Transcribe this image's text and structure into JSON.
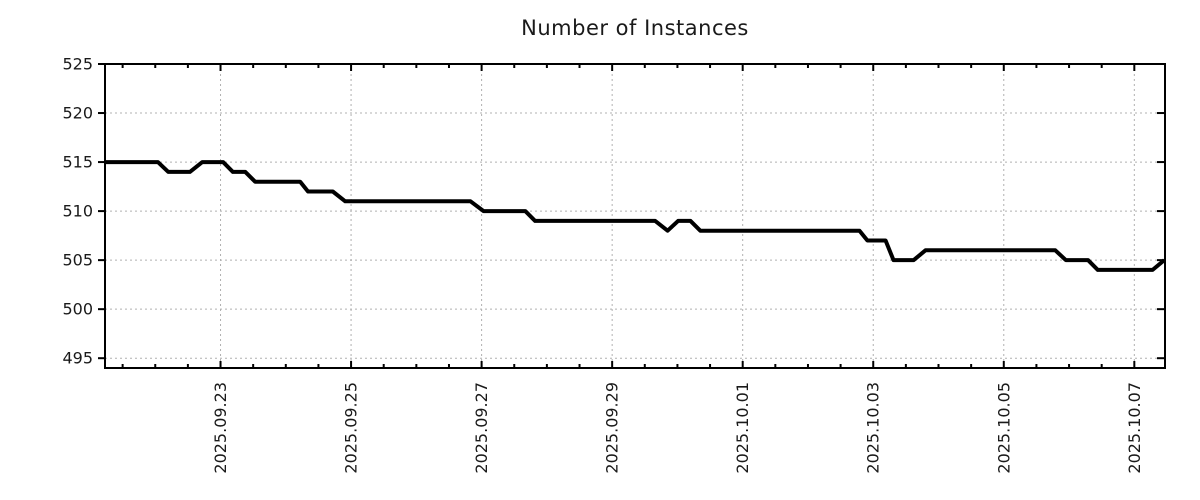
{
  "chart_data": {
    "type": "line",
    "title": "Number of Instances",
    "xlabel": "",
    "ylabel": "",
    "x_unit": "days since 2025-09-20 00:00",
    "xlim": [
      1.23,
      17.47
    ],
    "ylim": [
      494,
      525
    ],
    "grid": "dashed",
    "legend": "none",
    "y_ticks": [
      495,
      500,
      505,
      510,
      515,
      520,
      525
    ],
    "x_ticks": [
      {
        "t": 3,
        "label": "2025.09.23"
      },
      {
        "t": 5,
        "label": "2025.09.25"
      },
      {
        "t": 7,
        "label": "2025.09.27"
      },
      {
        "t": 9,
        "label": "2025.09.29"
      },
      {
        "t": 11,
        "label": "2025.10.01"
      },
      {
        "t": 13,
        "label": "2025.10.03"
      },
      {
        "t": 15,
        "label": "2025.10.05"
      },
      {
        "t": 17,
        "label": "2025.10.07"
      }
    ],
    "x_minor_step": 0.5,
    "colors": {
      "line": "#000000",
      "axis": "#000000",
      "grid": "#b0b0b0",
      "text": "#1a1a1a",
      "background": "#ffffff"
    },
    "series": [
      {
        "name": "instances",
        "points": [
          [
            1.23,
            515
          ],
          [
            2.04,
            515
          ],
          [
            2.2,
            514
          ],
          [
            2.53,
            514
          ],
          [
            2.72,
            515
          ],
          [
            3.04,
            515
          ],
          [
            3.19,
            514
          ],
          [
            3.38,
            514
          ],
          [
            3.53,
            513
          ],
          [
            4.22,
            513
          ],
          [
            4.34,
            512
          ],
          [
            4.72,
            512
          ],
          [
            4.91,
            511
          ],
          [
            6.83,
            511
          ],
          [
            7.03,
            510
          ],
          [
            7.67,
            510
          ],
          [
            7.82,
            509
          ],
          [
            9.66,
            509
          ],
          [
            9.85,
            508
          ],
          [
            10.01,
            509
          ],
          [
            10.2,
            509
          ],
          [
            10.35,
            508
          ],
          [
            12.79,
            508
          ],
          [
            12.91,
            507
          ],
          [
            13.19,
            507
          ],
          [
            13.31,
            505
          ],
          [
            13.62,
            505
          ],
          [
            13.8,
            506
          ],
          [
            15.79,
            506
          ],
          [
            15.95,
            505
          ],
          [
            16.29,
            505
          ],
          [
            16.44,
            504
          ],
          [
            17.28,
            504
          ],
          [
            17.46,
            505
          ]
        ]
      }
    ]
  }
}
